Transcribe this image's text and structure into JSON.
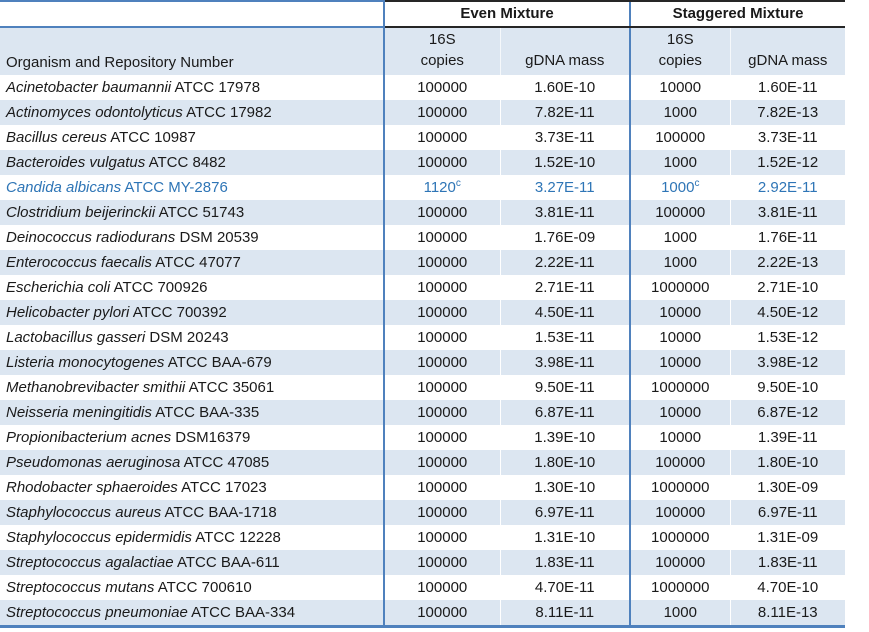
{
  "colors": {
    "stripe": "#dce6f1",
    "rule_blue": "#4f81bd",
    "rule_dark": "#262626",
    "highlight_text": "#2e75b6",
    "text": "#1a1a1a",
    "page_bg": "#ffffff"
  },
  "table": {
    "group_headers": {
      "even": "Even Mixture",
      "staggered": "Staggered Mixture"
    },
    "column_headers": {
      "organism": "Organism and Repository Number",
      "copies_line1": "16S",
      "copies_line2": "copies",
      "gdna": "gDNA mass"
    },
    "footnote_marker": "c",
    "rows": [
      {
        "name": "Acinetobacter baumannii",
        "id": "ATCC 17978",
        "even_copies": "100000",
        "even_gdna": "1.60E-10",
        "stag_copies": "10000",
        "stag_gdna": "1.60E-11"
      },
      {
        "name": "Actinomyces odontolyticus",
        "id": "ATCC 17982",
        "even_copies": "100000",
        "even_gdna": "7.82E-11",
        "stag_copies": "1000",
        "stag_gdna": "7.82E-13"
      },
      {
        "name": "Bacillus cereus",
        "id": "ATCC 10987",
        "even_copies": "100000",
        "even_gdna": "3.73E-11",
        "stag_copies": "100000",
        "stag_gdna": "3.73E-11"
      },
      {
        "name": "Bacteroides vulgatus",
        "id": "ATCC 8482",
        "even_copies": "100000",
        "even_gdna": "1.52E-10",
        "stag_copies": "1000",
        "stag_gdna": "1.52E-12"
      },
      {
        "name": "Candida albicans",
        "id": "ATCC MY-2876",
        "even_copies": "1120",
        "even_copies_sup": "c",
        "even_gdna": "3.27E-11",
        "stag_copies": "1000",
        "stag_copies_sup": "c",
        "stag_gdna": "2.92E-11",
        "highlight": true
      },
      {
        "name": "Clostridium beijerinckii",
        "id": "ATCC 51743",
        "even_copies": "100000",
        "even_gdna": "3.81E-11",
        "stag_copies": "100000",
        "stag_gdna": "3.81E-11"
      },
      {
        "name": "Deinococcus radiodurans",
        "id": "DSM 20539",
        "even_copies": "100000",
        "even_gdna": "1.76E-09",
        "stag_copies": "1000",
        "stag_gdna": "1.76E-11"
      },
      {
        "name": "Enterococcus faecalis",
        "id": "ATCC 47077",
        "even_copies": "100000",
        "even_gdna": "2.22E-11",
        "stag_copies": "1000",
        "stag_gdna": "2.22E-13"
      },
      {
        "name": "Escherichia coli",
        "id": "ATCC 700926",
        "even_copies": "100000",
        "even_gdna": "2.71E-11",
        "stag_copies": "1000000",
        "stag_gdna": "2.71E-10"
      },
      {
        "name": "Helicobacter pylori",
        "id": "ATCC 700392",
        "even_copies": "100000",
        "even_gdna": "4.50E-11",
        "stag_copies": "10000",
        "stag_gdna": "4.50E-12"
      },
      {
        "name": "Lactobacillus gasseri",
        "id": "DSM 20243",
        "even_copies": "100000",
        "even_gdna": "1.53E-11",
        "stag_copies": "10000",
        "stag_gdna": "1.53E-12"
      },
      {
        "name": "Listeria monocytogenes",
        "id": "ATCC BAA-679",
        "even_copies": "100000",
        "even_gdna": "3.98E-11",
        "stag_copies": "10000",
        "stag_gdna": "3.98E-12"
      },
      {
        "name": "Methanobrevibacter smithii",
        "id": "ATCC 35061",
        "even_copies": "100000",
        "even_gdna": "9.50E-11",
        "stag_copies": "1000000",
        "stag_gdna": "9.50E-10"
      },
      {
        "name": "Neisseria meningitidis",
        "id": "ATCC BAA-335",
        "even_copies": "100000",
        "even_gdna": "6.87E-11",
        "stag_copies": "10000",
        "stag_gdna": "6.87E-12"
      },
      {
        "name": "Propionibacterium acnes",
        "id": "DSM16379",
        "even_copies": "100000",
        "even_gdna": "1.39E-10",
        "stag_copies": "10000",
        "stag_gdna": "1.39E-11"
      },
      {
        "name": "Pseudomonas aeruginosa",
        "id": "ATCC 47085",
        "even_copies": "100000",
        "even_gdna": "1.80E-10",
        "stag_copies": "100000",
        "stag_gdna": "1.80E-10"
      },
      {
        "name": "Rhodobacter sphaeroides",
        "id": "ATCC 17023",
        "even_copies": "100000",
        "even_gdna": "1.30E-10",
        "stag_copies": "1000000",
        "stag_gdna": "1.30E-09"
      },
      {
        "name": "Staphylococcus aureus",
        "id": "ATCC BAA-1718",
        "even_copies": "100000",
        "even_gdna": "6.97E-11",
        "stag_copies": "100000",
        "stag_gdna": "6.97E-11"
      },
      {
        "name": "Staphylococcus epidermidis",
        "id": "ATCC 12228",
        "even_copies": "100000",
        "even_gdna": "1.31E-10",
        "stag_copies": "1000000",
        "stag_gdna": "1.31E-09"
      },
      {
        "name": "Streptococcus agalactiae",
        "id": "ATCC BAA-611",
        "even_copies": "100000",
        "even_gdna": "1.83E-11",
        "stag_copies": "100000",
        "stag_gdna": "1.83E-11"
      },
      {
        "name": "Streptococcus mutans",
        "id": "ATCC 700610",
        "even_copies": "100000",
        "even_gdna": "4.70E-11",
        "stag_copies": "1000000",
        "stag_gdna": "4.70E-10"
      },
      {
        "name": "Streptococcus pneumoniae",
        "id": "ATCC BAA-334",
        "even_copies": "100000",
        "even_gdna": "8.11E-11",
        "stag_copies": "1000",
        "stag_gdna": "8.11E-13"
      }
    ]
  }
}
